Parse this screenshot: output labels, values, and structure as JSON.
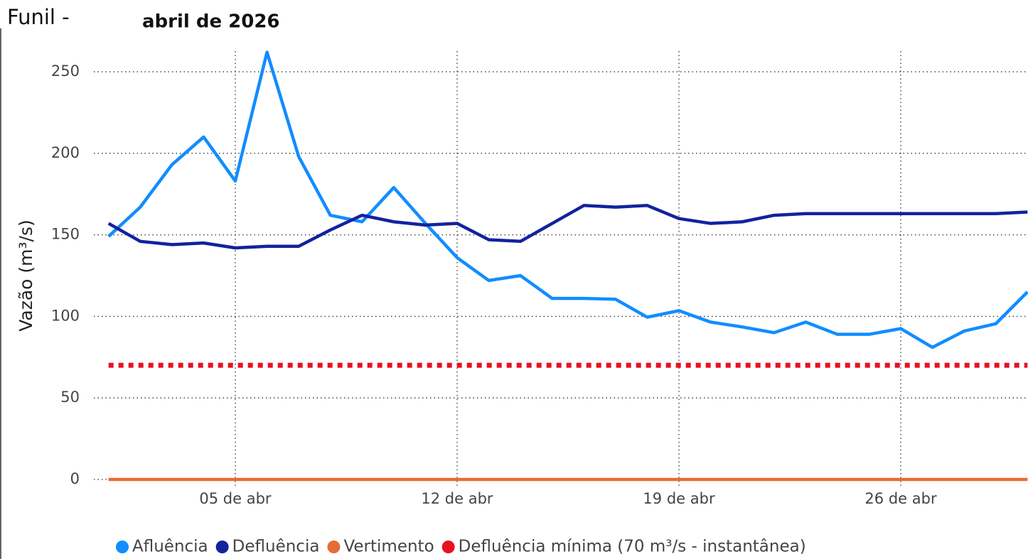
{
  "chart_data": {
    "type": "line",
    "title": "Funil -",
    "subtitle": "abril de 2026",
    "y_label": "Vazão (m³/s)",
    "x": [
      1,
      2,
      3,
      4,
      5,
      6,
      7,
      8,
      9,
      10,
      11,
      12,
      13,
      14,
      15,
      16,
      17,
      18,
      19,
      20,
      21,
      22,
      23,
      24,
      25,
      26,
      27,
      28,
      29,
      30
    ],
    "xlim": [
      1,
      30
    ],
    "xticks": [
      {
        "value": 5,
        "label": "05 de abr"
      },
      {
        "value": 12,
        "label": "12 de abr"
      },
      {
        "value": 19,
        "label": "19 de abr"
      },
      {
        "value": 26,
        "label": "26 de abr"
      }
    ],
    "ylim": [
      0,
      265
    ],
    "yticks": [
      0,
      50,
      100,
      150,
      200,
      250
    ],
    "grid": true,
    "legend": "bottom",
    "series": [
      {
        "name": "Afluência",
        "color": "#118DFF",
        "values": [
          149,
          167,
          193,
          210,
          183,
          262,
          198,
          162,
          158,
          179,
          157,
          136,
          122,
          125,
          111,
          111,
          110.5,
          99.5,
          103.5,
          96.5,
          93.5,
          90,
          96.5,
          89,
          89,
          92.5,
          81,
          91,
          95.5,
          115
        ]
      },
      {
        "name": "Defluência",
        "color": "#12239E",
        "values": [
          157,
          146,
          144,
          145,
          142,
          143,
          143,
          153,
          162,
          158,
          156,
          157,
          147,
          146,
          157,
          168,
          167,
          168,
          160,
          157,
          158,
          162,
          163,
          163,
          163,
          163,
          163,
          163,
          163,
          164
        ]
      },
      {
        "name": "Vertimento",
        "color": "#E66C37",
        "values": [
          0,
          0,
          0,
          0,
          0,
          0,
          0,
          0,
          0,
          0,
          0,
          0,
          0,
          0,
          0,
          0,
          0,
          0,
          0,
          0,
          0,
          0,
          0,
          0,
          0,
          0,
          0,
          0,
          0,
          0
        ]
      },
      {
        "name": "Defluência mínima (70 m³/s - instantânea)",
        "color": "#E81123",
        "dashed": true,
        "values": [
          70,
          70,
          70,
          70,
          70,
          70,
          70,
          70,
          70,
          70,
          70,
          70,
          70,
          70,
          70,
          70,
          70,
          70,
          70,
          70,
          70,
          70,
          70,
          70,
          70,
          70,
          70,
          70,
          70,
          70
        ]
      }
    ]
  }
}
